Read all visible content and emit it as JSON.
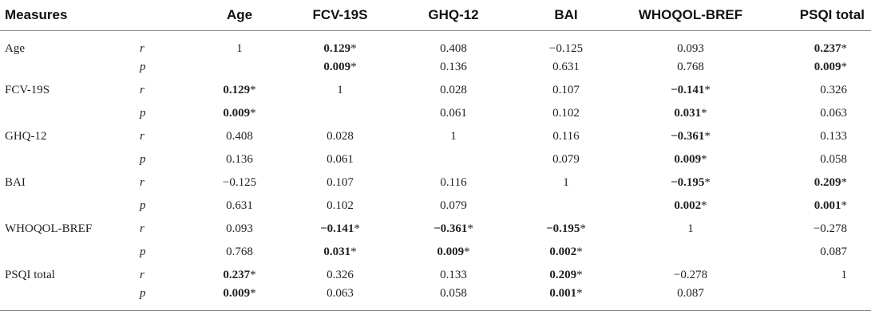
{
  "headers": [
    "Measures",
    "",
    "Age",
    "FCV-19S",
    "GHQ-12",
    "BAI",
    "WHOQOL-BREF",
    "PSQI total"
  ],
  "rows": [
    {
      "measure": "Age",
      "stat": "r",
      "values": [
        {
          "v": "1",
          "b": false,
          "s": ""
        },
        {
          "v": "0.129",
          "b": true,
          "s": "*"
        },
        {
          "v": "0.408",
          "b": false,
          "s": ""
        },
        {
          "v": "−0.125",
          "b": false,
          "s": ""
        },
        {
          "v": "0.093",
          "b": false,
          "s": ""
        },
        {
          "v": "0.237",
          "b": true,
          "s": "*"
        }
      ]
    },
    {
      "measure": "",
      "stat": "p",
      "values": [
        {
          "v": "",
          "b": false,
          "s": ""
        },
        {
          "v": "0.009",
          "b": true,
          "s": "*"
        },
        {
          "v": "0.136",
          "b": false,
          "s": ""
        },
        {
          "v": "0.631",
          "b": false,
          "s": ""
        },
        {
          "v": "0.768",
          "b": false,
          "s": ""
        },
        {
          "v": "0.009",
          "b": true,
          "s": "*"
        }
      ]
    },
    {
      "measure": "FCV-19S",
      "stat": "r",
      "values": [
        {
          "v": "0.129",
          "b": true,
          "s": "*"
        },
        {
          "v": "1",
          "b": false,
          "s": ""
        },
        {
          "v": "0.028",
          "b": false,
          "s": ""
        },
        {
          "v": "0.107",
          "b": false,
          "s": ""
        },
        {
          "v": "−0.141",
          "b": true,
          "s": "*"
        },
        {
          "v": "0.326",
          "b": false,
          "s": ""
        }
      ]
    },
    {
      "measure": "",
      "stat": "p",
      "values": [
        {
          "v": "0.009",
          "b": true,
          "s": "*"
        },
        {
          "v": "",
          "b": false,
          "s": ""
        },
        {
          "v": "0.061",
          "b": false,
          "s": ""
        },
        {
          "v": "0.102",
          "b": false,
          "s": ""
        },
        {
          "v": "0.031",
          "b": true,
          "s": "*"
        },
        {
          "v": "0.063",
          "b": false,
          "s": ""
        }
      ]
    },
    {
      "measure": "GHQ-12",
      "stat": "r",
      "values": [
        {
          "v": "0.408",
          "b": false,
          "s": ""
        },
        {
          "v": "0.028",
          "b": false,
          "s": ""
        },
        {
          "v": "1",
          "b": false,
          "s": ""
        },
        {
          "v": "0.116",
          "b": false,
          "s": ""
        },
        {
          "v": "−0.361",
          "b": true,
          "s": "*"
        },
        {
          "v": "0.133",
          "b": false,
          "s": ""
        }
      ]
    },
    {
      "measure": "",
      "stat": "p",
      "values": [
        {
          "v": "0.136",
          "b": false,
          "s": ""
        },
        {
          "v": "0.061",
          "b": false,
          "s": ""
        },
        {
          "v": "",
          "b": false,
          "s": ""
        },
        {
          "v": "0.079",
          "b": false,
          "s": ""
        },
        {
          "v": "0.009",
          "b": true,
          "s": "*"
        },
        {
          "v": "0.058",
          "b": false,
          "s": ""
        }
      ]
    },
    {
      "measure": "BAI",
      "stat": "r",
      "values": [
        {
          "v": "−0.125",
          "b": false,
          "s": ""
        },
        {
          "v": "0.107",
          "b": false,
          "s": ""
        },
        {
          "v": "0.116",
          "b": false,
          "s": ""
        },
        {
          "v": "1",
          "b": false,
          "s": ""
        },
        {
          "v": "−0.195",
          "b": true,
          "s": "*"
        },
        {
          "v": "0.209",
          "b": true,
          "s": "*"
        }
      ]
    },
    {
      "measure": "",
      "stat": "p",
      "values": [
        {
          "v": "0.631",
          "b": false,
          "s": ""
        },
        {
          "v": "0.102",
          "b": false,
          "s": ""
        },
        {
          "v": "0.079",
          "b": false,
          "s": ""
        },
        {
          "v": "",
          "b": false,
          "s": ""
        },
        {
          "v": "0.002",
          "b": true,
          "s": "*"
        },
        {
          "v": "0.001",
          "b": true,
          "s": "*"
        }
      ]
    },
    {
      "measure": "WHOQOL-BREF",
      "stat": "r",
      "values": [
        {
          "v": "0.093",
          "b": false,
          "s": ""
        },
        {
          "v": "−0.141",
          "b": true,
          "s": "*"
        },
        {
          "v": "−0.361",
          "b": true,
          "s": "*"
        },
        {
          "v": "−0.195",
          "b": true,
          "s": "*"
        },
        {
          "v": "1",
          "b": false,
          "s": ""
        },
        {
          "v": "−0.278",
          "b": false,
          "s": ""
        }
      ]
    },
    {
      "measure": "",
      "stat": "p",
      "values": [
        {
          "v": "0.768",
          "b": false,
          "s": ""
        },
        {
          "v": "0.031",
          "b": true,
          "s": "*"
        },
        {
          "v": "0.009",
          "b": true,
          "s": "*"
        },
        {
          "v": "0.002",
          "b": true,
          "s": "*"
        },
        {
          "v": "",
          "b": false,
          "s": ""
        },
        {
          "v": "0.087",
          "b": false,
          "s": ""
        }
      ]
    },
    {
      "measure": "PSQI total",
      "stat": "r",
      "values": [
        {
          "v": "0.237",
          "b": true,
          "s": "*"
        },
        {
          "v": "0.326",
          "b": false,
          "s": ""
        },
        {
          "v": "0.133",
          "b": false,
          "s": ""
        },
        {
          "v": "0.209",
          "b": true,
          "s": "*"
        },
        {
          "v": "−0.278",
          "b": false,
          "s": ""
        },
        {
          "v": "1",
          "b": false,
          "s": ""
        }
      ]
    },
    {
      "measure": "",
      "stat": "p",
      "values": [
        {
          "v": "0.009",
          "b": true,
          "s": "*"
        },
        {
          "v": "0.063",
          "b": false,
          "s": ""
        },
        {
          "v": "0.058",
          "b": false,
          "s": ""
        },
        {
          "v": "0.001",
          "b": true,
          "s": "*"
        },
        {
          "v": "0.087",
          "b": false,
          "s": ""
        },
        {
          "v": "",
          "b": false,
          "s": ""
        }
      ]
    }
  ]
}
